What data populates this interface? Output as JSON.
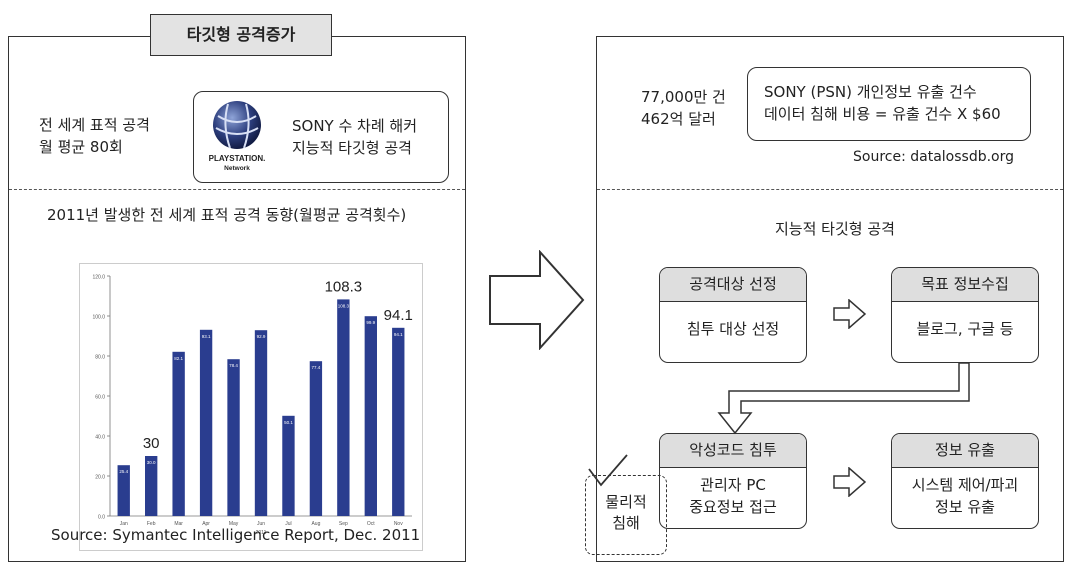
{
  "left": {
    "title": "타깃형 공격증가",
    "stat_line1": "전 세계 표적 공격",
    "stat_line2": "월 평균 80회",
    "sony_line1": "SONY 수 차례 해커",
    "sony_line2": "지능적 타깃형 공격",
    "logo_text1": "PLAYSTATION.",
    "logo_text2": "Network",
    "chart_heading": "2011년 발생한 전 세계 표적 공격 동향(월평균 공격횟수)",
    "source": "Source: Symantec Intelligence Report, Dec. 2011"
  },
  "right": {
    "count_line1": "77,000만 건",
    "count_line2": "462억 달러",
    "psn_line1": "SONY (PSN) 개인정보 유출 건수",
    "psn_line2": "데이터 침해 비용 = 유출 건수 X $60",
    "source": "Source: datalossdb.org",
    "flow_title": "지능적 타깃형 공격",
    "steps": [
      {
        "head": "공격대상 선정",
        "body1": "침투 대상 선정",
        "body2": ""
      },
      {
        "head": "목표 정보수집",
        "body1": "블로그, 구글 등",
        "body2": ""
      },
      {
        "head": "악성코드 침투",
        "body1": "관리자 PC",
        "body2": "중요정보 접근"
      },
      {
        "head": "정보 유출",
        "body1": "시스템 제어/파괴",
        "body2": "정보 유출"
      }
    ],
    "physical_line1": "물리적",
    "physical_line2": "침해"
  },
  "chart_data": {
    "type": "bar",
    "categories": [
      "Jan",
      "Feb",
      "Mar",
      "Apr",
      "May",
      "Jun",
      "Jul",
      "Aug",
      "Sep",
      "Oct",
      "Nov"
    ],
    "values": [
      25.4,
      30,
      82.1,
      93.1,
      78.4,
      92.9,
      50.1,
      77.4,
      108.3,
      99.9,
      94.1
    ],
    "data_labels": [
      "25.4",
      "30.0",
      "82.1",
      "93.1",
      "78.4",
      "92.9",
      "50.1",
      "77.4",
      "108.3",
      "99.9",
      "94.1"
    ],
    "callouts": [
      {
        "index": 1,
        "text": "30"
      },
      {
        "index": 8,
        "text": "108.3"
      },
      {
        "index": 10,
        "text": "94.1"
      }
    ],
    "yticks": [
      "0.0",
      "20.0",
      "40.0",
      "60.0",
      "80.0",
      "100.0",
      "120.0"
    ],
    "ylim": [
      0,
      120
    ],
    "xlabel": "2011",
    "bar_color": "#2a3d8f"
  }
}
